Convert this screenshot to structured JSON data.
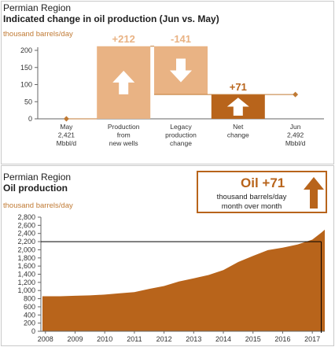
{
  "panel1": {
    "region": "Permian Region",
    "title": "Indicated change in oil production (Jun vs. May)",
    "unit": "thousand barrels/day"
  },
  "panel2": {
    "region": "Permian Region",
    "title": "Oil production",
    "unit": "thousand barrels/day"
  },
  "callout": {
    "headline": "Oil +71",
    "line1": "thousand barrels/day",
    "line2": "month over month"
  },
  "colors": {
    "light_orange": "#e9b384",
    "dark_orange": "#b8641b",
    "area_fill": "#b8641b",
    "label_orange": "#c07a34"
  },
  "chart_data": [
    {
      "type": "bar",
      "subtype": "waterfall",
      "ylim": [
        0,
        200
      ],
      "yticks": [
        0,
        50,
        100,
        150,
        200
      ],
      "categories": [
        [
          "May",
          "2,421",
          "Mbbl/d"
        ],
        [
          "Production",
          "from",
          "new wells"
        ],
        [
          "Legacy",
          "production",
          "change"
        ],
        [
          "Net",
          "change"
        ],
        [
          "Jun",
          "2,492",
          "Mbbl/d"
        ]
      ],
      "steps": [
        {
          "label": "+212",
          "base": 0,
          "top": 212,
          "direction": "up",
          "color": "#e9b384"
        },
        {
          "label": "-141",
          "base": 71,
          "top": 212,
          "direction": "down",
          "color": "#e9b384"
        },
        {
          "label": "+71",
          "base": 0,
          "top": 71,
          "direction": "up",
          "color": "#b8641b"
        }
      ],
      "end_level": 71
    },
    {
      "type": "area",
      "ylim": [
        0,
        2800
      ],
      "yticks": [
        0,
        200,
        400,
        600,
        800,
        1000,
        1200,
        1400,
        1600,
        1800,
        2000,
        2200,
        2400,
        2600,
        2800
      ],
      "xticks": [
        "2008",
        "2009",
        "2010",
        "2011",
        "2012",
        "2013",
        "2014",
        "2015",
        "2016",
        "2017"
      ],
      "x": [
        2007.9,
        2008.5,
        2009.0,
        2009.5,
        2010.0,
        2010.5,
        2011.0,
        2011.5,
        2012.0,
        2012.5,
        2013.0,
        2013.5,
        2014.0,
        2014.5,
        2015.0,
        2015.5,
        2016.0,
        2016.5,
        2017.0,
        2017.3,
        2017.42
      ],
      "values": [
        860,
        860,
        870,
        880,
        900,
        930,
        960,
        1040,
        1110,
        1220,
        1300,
        1380,
        1500,
        1700,
        1850,
        1990,
        2050,
        2130,
        2250,
        2420,
        2492
      ],
      "reference_value": 2200,
      "reference_x": 2017.3
    }
  ]
}
